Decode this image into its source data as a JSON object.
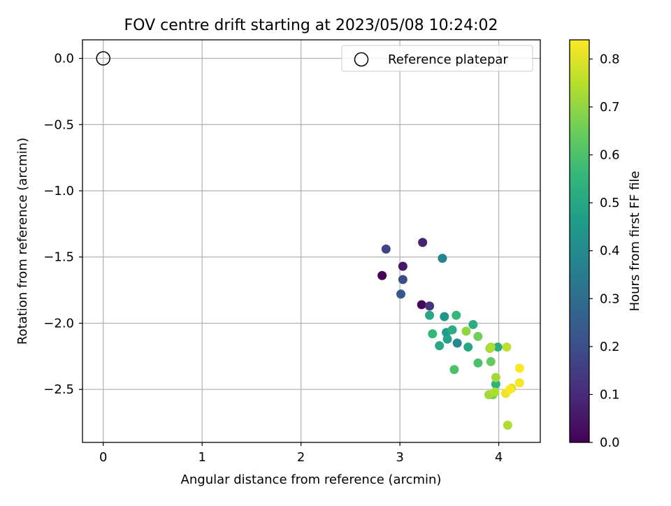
{
  "chart_data": {
    "type": "scatter",
    "title": "FOV centre drift starting at 2023/05/08 10:24:02",
    "xlabel": "Angular distance from reference (arcmin)",
    "ylabel": "Rotation from reference (arcmin)",
    "xlim": [
      -0.21,
      4.42
    ],
    "ylim": [
      -2.9,
      0.14
    ],
    "xticks": [
      0,
      1,
      2,
      3,
      4
    ],
    "yticks": [
      0.0,
      -0.5,
      -1.0,
      -1.5,
      -2.0,
      -2.5
    ],
    "xtick_labels": [
      "0",
      "1",
      "2",
      "3",
      "4"
    ],
    "ytick_labels": [
      "0.0",
      "−0.5",
      "−1.0",
      "−1.5",
      "−2.0",
      "−2.5"
    ],
    "grid": true,
    "legend": {
      "location": "upper right",
      "entries": [
        "Reference platepar"
      ]
    },
    "reference_point": {
      "x": 0,
      "y": 0,
      "name": "Reference platepar"
    },
    "colorbar": {
      "label": "Hours from first FF file",
      "colormap": "viridis",
      "range": [
        0.0,
        0.84
      ],
      "ticks": [
        0.0,
        0.1,
        0.2,
        0.3,
        0.4,
        0.5,
        0.6,
        0.7,
        0.8
      ],
      "tick_labels": [
        "0.0",
        "0.1",
        "0.2",
        "0.3",
        "0.4",
        "0.5",
        "0.6",
        "0.7",
        "0.8"
      ]
    },
    "points": [
      {
        "x": 2.82,
        "y": -1.64,
        "c": 0.0
      },
      {
        "x": 3.22,
        "y": -1.86,
        "c": 0.02
      },
      {
        "x": 3.03,
        "y": -1.57,
        "c": 0.05
      },
      {
        "x": 3.23,
        "y": -1.39,
        "c": 0.08
      },
      {
        "x": 3.3,
        "y": -1.87,
        "c": 0.12
      },
      {
        "x": 2.86,
        "y": -1.44,
        "c": 0.17
      },
      {
        "x": 3.03,
        "y": -1.67,
        "c": 0.2
      },
      {
        "x": 3.01,
        "y": -1.78,
        "c": 0.23
      },
      {
        "x": 3.43,
        "y": -1.51,
        "c": 0.38
      },
      {
        "x": 3.58,
        "y": -2.15,
        "c": 0.4
      },
      {
        "x": 3.45,
        "y": -1.95,
        "c": 0.44
      },
      {
        "x": 3.47,
        "y": -2.07,
        "c": 0.46
      },
      {
        "x": 3.48,
        "y": -2.12,
        "c": 0.48
      },
      {
        "x": 3.4,
        "y": -2.17,
        "c": 0.5
      },
      {
        "x": 3.3,
        "y": -1.94,
        "c": 0.5
      },
      {
        "x": 3.69,
        "y": -2.18,
        "c": 0.5
      },
      {
        "x": 3.74,
        "y": -2.01,
        "c": 0.52
      },
      {
        "x": 3.53,
        "y": -2.05,
        "c": 0.52
      },
      {
        "x": 3.99,
        "y": -2.18,
        "c": 0.52
      },
      {
        "x": 3.97,
        "y": -2.46,
        "c": 0.54
      },
      {
        "x": 3.33,
        "y": -2.08,
        "c": 0.56
      },
      {
        "x": 3.57,
        "y": -1.94,
        "c": 0.56
      },
      {
        "x": 3.55,
        "y": -2.35,
        "c": 0.6
      },
      {
        "x": 3.79,
        "y": -2.3,
        "c": 0.6
      },
      {
        "x": 3.92,
        "y": -2.29,
        "c": 0.64
      },
      {
        "x": 3.79,
        "y": -2.1,
        "c": 0.66
      },
      {
        "x": 3.94,
        "y": -2.54,
        "c": 0.66
      },
      {
        "x": 3.67,
        "y": -2.06,
        "c": 0.7
      },
      {
        "x": 3.9,
        "y": -2.54,
        "c": 0.72
      },
      {
        "x": 3.97,
        "y": -2.41,
        "c": 0.72
      },
      {
        "x": 3.91,
        "y": -2.19,
        "c": 0.72
      },
      {
        "x": 3.92,
        "y": -2.18,
        "c": 0.74
      },
      {
        "x": 3.96,
        "y": -2.52,
        "c": 0.74
      },
      {
        "x": 4.09,
        "y": -2.77,
        "c": 0.74
      },
      {
        "x": 4.08,
        "y": -2.18,
        "c": 0.76
      },
      {
        "x": 4.13,
        "y": -2.49,
        "c": 0.8
      },
      {
        "x": 4.07,
        "y": -2.53,
        "c": 0.82
      },
      {
        "x": 4.21,
        "y": -2.45,
        "c": 0.83
      },
      {
        "x": 4.21,
        "y": -2.34,
        "c": 0.84
      },
      {
        "x": 4.11,
        "y": -2.5,
        "c": 0.84
      }
    ]
  }
}
